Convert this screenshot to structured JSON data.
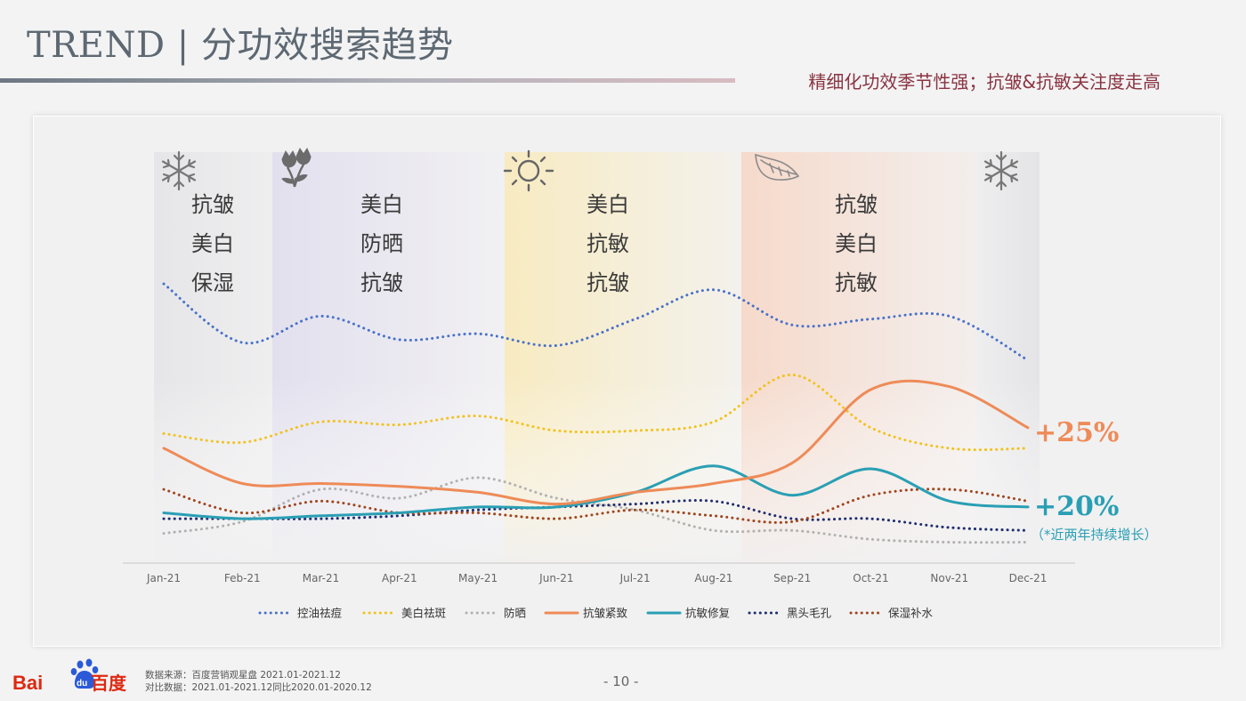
{
  "header": {
    "title": "TREND | 分功效搜索趋势",
    "subtitle": "精细化功效季节性强；抗皱&抗敏关注度走高"
  },
  "colors": {
    "accent": "#8a3441",
    "orange": "#ee8b58",
    "teal": "#2a9fb4"
  },
  "seasons": [
    {
      "name": "winter-start",
      "icon": "snowflake-icon",
      "words": [
        "抗皱",
        "美白",
        "保湿"
      ]
    },
    {
      "name": "spring",
      "icon": "flower-icon",
      "words": [
        "美白",
        "防晒",
        "抗皱"
      ]
    },
    {
      "name": "summer",
      "icon": "sun-icon",
      "words": [
        "美白",
        "抗敏",
        "抗皱"
      ]
    },
    {
      "name": "autumn",
      "icon": "leaf-icon",
      "words": [
        "抗皱",
        "美白",
        "抗敏"
      ]
    },
    {
      "name": "winter-end",
      "icon": "snowflake-icon",
      "words": []
    }
  ],
  "chart_data": {
    "type": "line",
    "title": "分功效搜索趋势",
    "categories": [
      "Jan-21",
      "Feb-21",
      "Mar-21",
      "Apr-21",
      "May-21",
      "Jun-21",
      "Jul-21",
      "Aug-21",
      "Sep-21",
      "Oct-21",
      "Nov-21",
      "Dec-21"
    ],
    "xlabel": "",
    "ylabel": "",
    "yaxis_shown": false,
    "ylim": [
      0,
      100
    ],
    "grid": false,
    "legend_position": "bottom",
    "series": [
      {
        "name": "控油祛痘",
        "color": "#4a72c9",
        "style": "dotted",
        "values": [
          93,
          73,
          82,
          74,
          76,
          72,
          81,
          91,
          79,
          81,
          82,
          67
        ]
      },
      {
        "name": "美白祛斑",
        "color": "#f2c21c",
        "style": "dotted",
        "values": [
          42,
          39,
          46,
          45,
          48,
          43,
          43,
          46,
          62,
          44,
          37,
          37
        ]
      },
      {
        "name": "防晒",
        "color": "#b1b1b1",
        "style": "dotted",
        "values": [
          8,
          12,
          23,
          20,
          27,
          20,
          16,
          9,
          9,
          6,
          5,
          5
        ]
      },
      {
        "name": "抗皱紧致",
        "color": "#ee8b58",
        "style": "solid",
        "values": [
          37,
          25,
          25,
          24,
          22,
          18,
          22,
          25,
          32,
          57,
          58,
          44
        ]
      },
      {
        "name": "抗敏修复",
        "color": "#2a9fb4",
        "style": "solid",
        "values": [
          15,
          13,
          14,
          15,
          17,
          17,
          22,
          31,
          21,
          30,
          19,
          17
        ]
      },
      {
        "name": "黑头毛孔",
        "color": "#1f2d6e",
        "style": "dotted",
        "values": [
          13,
          13,
          13,
          14,
          16,
          17,
          18,
          19,
          13,
          13,
          10,
          9
        ]
      },
      {
        "name": "保湿补水",
        "color": "#a0451e",
        "style": "dotted",
        "values": [
          23,
          15,
          19,
          15,
          15,
          13,
          16,
          14,
          12,
          21,
          23,
          19
        ]
      }
    ],
    "annotations": [
      {
        "text": "+25%",
        "series": "抗皱紧致",
        "color": "#ee8b58"
      },
      {
        "text": "+20%",
        "series": "抗敏修复",
        "color": "#2a9fb4"
      },
      {
        "text": "（*近两年持续增长）",
        "series": "抗敏修复",
        "color": "#2a9fb4"
      }
    ]
  },
  "footer": {
    "logo_text": "Bai du 百度",
    "source_line": "数据来源：百度营销观星盘 2021.01-2021.12",
    "compare_line": "对比数据：2021.01-2021.12同比2020.01-2020.12",
    "page_number": "- 10 -"
  }
}
